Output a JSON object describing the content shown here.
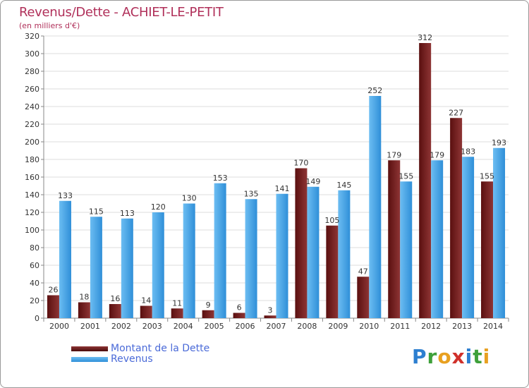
{
  "title": "Revenus/Dette - ACHIET-LE-PETIT",
  "subtitle": "(en milliers d'€)",
  "legend": [
    {
      "label": "Montant de la Dette",
      "color": "#6e1a1a"
    },
    {
      "label": "Revenus",
      "color": "#3a9be0"
    }
  ],
  "logo": [
    "P",
    "r",
    "o",
    "x",
    "i",
    "t",
    "i"
  ],
  "colors": {
    "debt_dark": "#5a0f0f",
    "debt_light": "#8e3535",
    "revenue_dark": "#2f8fd8",
    "revenue_light": "#6cbdf2",
    "title": "#b0305a",
    "legend_text": "#4a6ad8"
  },
  "chart_data": {
    "type": "bar",
    "categories": [
      "2000",
      "2001",
      "2002",
      "2003",
      "2004",
      "2005",
      "2006",
      "2007",
      "2008",
      "2009",
      "2010",
      "2011",
      "2012",
      "2013",
      "2014"
    ],
    "series": [
      {
        "name": "Montant de la Dette",
        "values": [
          26,
          18,
          16,
          14,
          11,
          9,
          6,
          3,
          170,
          105,
          47,
          179,
          312,
          227,
          155
        ]
      },
      {
        "name": "Revenus",
        "values": [
          133,
          115,
          113,
          120,
          130,
          153,
          135,
          141,
          149,
          145,
          252,
          155,
          179,
          183,
          193
        ]
      }
    ],
    "yticks": [
      0,
      20,
      40,
      60,
      80,
      100,
      120,
      140,
      160,
      180,
      200,
      220,
      240,
      260,
      280,
      300,
      320
    ],
    "ylim": [
      0,
      320
    ],
    "grid": true
  }
}
